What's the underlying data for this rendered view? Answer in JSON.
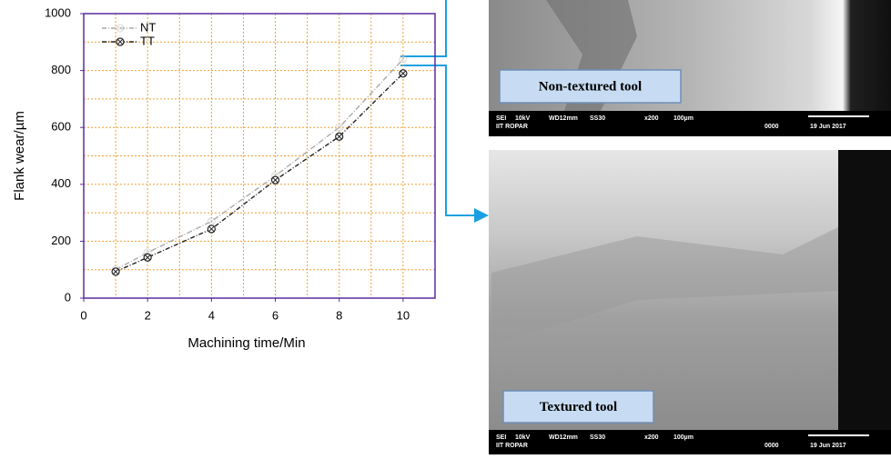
{
  "chart_data": {
    "type": "line",
    "x_label": "Machining time/Min",
    "y_label": "Flank wear/µm",
    "x": [
      1,
      2,
      4,
      6,
      8,
      10
    ],
    "series": [
      {
        "name": "NT",
        "color": "#aaaaaa",
        "values": [
          100,
          160,
          270,
          430,
          600,
          840
        ]
      },
      {
        "name": "TT",
        "color": "#222222",
        "values": [
          93,
          143,
          243,
          415,
          568,
          790
        ]
      }
    ],
    "xlim": [
      0,
      11
    ],
    "xticks": [
      0,
      2,
      4,
      6,
      8,
      10
    ],
    "ylim": [
      0,
      1000
    ],
    "yticks": [
      0,
      200,
      400,
      600,
      800,
      1000
    ],
    "grid": true,
    "grid_color": "#f0a030",
    "axis_color": "#5a2ca0",
    "legend": "upper-left"
  },
  "images": [
    {
      "label": "Non-textured tool",
      "info": [
        "SEI",
        "10kV",
        "WD12mm",
        "SS30",
        "x200",
        "100µm",
        "IIT ROPAR",
        "0000",
        "19 Jun 2017"
      ]
    },
    {
      "label": "Textured tool",
      "info": [
        "SEI",
        "10kV",
        "WD12mm",
        "SS30",
        "x200",
        "100µm",
        "IIT ROPAR",
        "0000",
        "19 Jun 2017"
      ]
    }
  ]
}
